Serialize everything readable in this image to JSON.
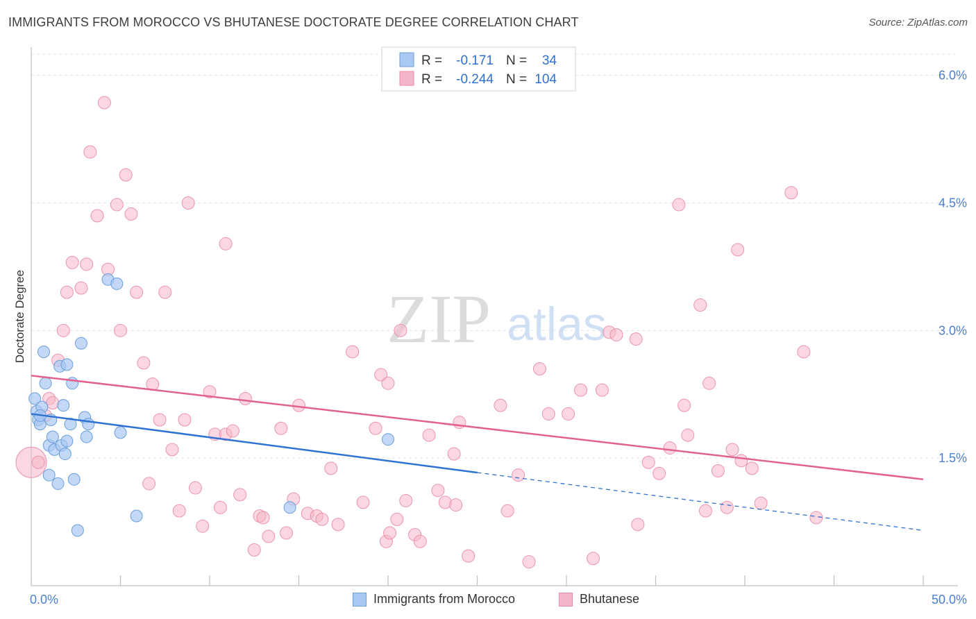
{
  "title": "IMMIGRANTS FROM MOROCCO VS BHUTANESE DOCTORATE DEGREE CORRELATION CHART",
  "source": "Source: ZipAtlas.com",
  "watermark": {
    "zip": "ZIP",
    "atlas": "atlas"
  },
  "legend_top": {
    "rows": [
      {
        "r_label": "R =",
        "r_value": "-0.171",
        "n_label": "N =",
        "n_value": "34",
        "color": "#a9c8f2"
      },
      {
        "r_label": "R =",
        "r_value": "-0.244",
        "n_label": "N =",
        "n_value": "104",
        "color": "#f5b6c9"
      }
    ]
  },
  "legend_bottom": {
    "series1": "Immigrants from Morocco",
    "series2": "Bhutanese"
  },
  "chart_data": {
    "type": "scatter",
    "xlabel": "",
    "ylabel": "Doctorate Degree",
    "xlim": [
      0,
      50
    ],
    "ylim": [
      0,
      6.25
    ],
    "x_tick_labels": [
      "0.0%",
      "50.0%"
    ],
    "y_ticks": [
      1.5,
      3.0,
      4.5,
      6.0
    ],
    "y_tick_labels": [
      "1.5%",
      "3.0%",
      "4.5%",
      "6.0%"
    ],
    "grid": true,
    "legend": "top-center",
    "colors": {
      "morocco_fill": "#a9c8f2",
      "morocco_edge": "#6a9fdc",
      "morocco_line": "#2f72d4",
      "bhutanese_fill": "#f5b6c9",
      "bhutanese_edge": "#e98aa8",
      "bhutanese_line": "#e2628f",
      "tick_label": "#4a7fd0"
    },
    "series": [
      {
        "name": "Immigrants from Morocco",
        "trend": {
          "x0": 0,
          "y0": 2.02,
          "x1": 25,
          "y1": 1.33,
          "dash_to_x": 50,
          "dash_to_y": 0.65
        },
        "points": [
          [
            0.2,
            2.2
          ],
          [
            0.3,
            2.05
          ],
          [
            0.4,
            1.95
          ],
          [
            0.5,
            1.9
          ],
          [
            0.6,
            2.1
          ],
          [
            0.7,
            2.75
          ],
          [
            0.8,
            2.38
          ],
          [
            1.0,
            1.65
          ],
          [
            1.1,
            1.95
          ],
          [
            1.2,
            1.75
          ],
          [
            1.3,
            1.6
          ],
          [
            1.5,
            1.2
          ],
          [
            1.6,
            2.58
          ],
          [
            1.7,
            1.65
          ],
          [
            1.8,
            2.12
          ],
          [
            1.9,
            1.55
          ],
          [
            2.0,
            1.7
          ],
          [
            2.2,
            1.9
          ],
          [
            2.3,
            2.38
          ],
          [
            2.4,
            1.25
          ],
          [
            2.6,
            0.65
          ],
          [
            2.8,
            2.85
          ],
          [
            3.0,
            1.98
          ],
          [
            3.1,
            1.75
          ],
          [
            3.2,
            1.9
          ],
          [
            4.3,
            3.6
          ],
          [
            4.8,
            3.55
          ],
          [
            5.0,
            1.8
          ],
          [
            5.9,
            0.82
          ],
          [
            1.0,
            1.3
          ],
          [
            14.5,
            0.92
          ],
          [
            20.0,
            1.72
          ],
          [
            2.0,
            2.6
          ],
          [
            0.5,
            2.0
          ]
        ]
      },
      {
        "name": "Bhutanese",
        "trend": {
          "x0": 0,
          "y0": 2.47,
          "x1": 50,
          "y1": 1.25
        },
        "points": [
          [
            0.0,
            1.45
          ],
          [
            0.8,
            2.0
          ],
          [
            1.0,
            2.2
          ],
          [
            1.2,
            2.15
          ],
          [
            1.5,
            2.65
          ],
          [
            1.8,
            3.0
          ],
          [
            2.0,
            3.45
          ],
          [
            2.3,
            3.8
          ],
          [
            2.8,
            3.5
          ],
          [
            3.1,
            3.78
          ],
          [
            3.3,
            5.1
          ],
          [
            3.7,
            4.35
          ],
          [
            4.1,
            5.68
          ],
          [
            4.3,
            3.72
          ],
          [
            4.8,
            4.48
          ],
          [
            5.0,
            3.0
          ],
          [
            5.3,
            4.83
          ],
          [
            5.6,
            4.37
          ],
          [
            5.9,
            3.45
          ],
          [
            6.3,
            2.62
          ],
          [
            6.6,
            1.2
          ],
          [
            6.8,
            2.37
          ],
          [
            7.2,
            1.95
          ],
          [
            7.5,
            3.45
          ],
          [
            7.9,
            1.6
          ],
          [
            8.3,
            0.88
          ],
          [
            8.6,
            1.95
          ],
          [
            8.8,
            4.5
          ],
          [
            9.2,
            1.15
          ],
          [
            9.6,
            0.7
          ],
          [
            10.0,
            2.28
          ],
          [
            10.3,
            1.78
          ],
          [
            10.6,
            0.92
          ],
          [
            10.9,
            1.78
          ],
          [
            10.9,
            4.02
          ],
          [
            11.3,
            1.82
          ],
          [
            11.7,
            1.07
          ],
          [
            12.0,
            2.2
          ],
          [
            12.5,
            0.42
          ],
          [
            12.8,
            0.82
          ],
          [
            13.0,
            0.8
          ],
          [
            13.3,
            0.58
          ],
          [
            14.0,
            1.85
          ],
          [
            14.3,
            0.62
          ],
          [
            14.7,
            1.02
          ],
          [
            15.0,
            2.12
          ],
          [
            15.5,
            0.85
          ],
          [
            16.0,
            0.82
          ],
          [
            16.3,
            0.78
          ],
          [
            16.8,
            1.38
          ],
          [
            17.2,
            0.72
          ],
          [
            18.0,
            2.75
          ],
          [
            18.6,
            0.98
          ],
          [
            19.3,
            1.85
          ],
          [
            19.6,
            2.48
          ],
          [
            19.9,
            0.52
          ],
          [
            20.0,
            2.38
          ],
          [
            20.1,
            0.62
          ],
          [
            20.5,
            0.78
          ],
          [
            20.7,
            3.0
          ],
          [
            21.0,
            1.0
          ],
          [
            21.5,
            0.6
          ],
          [
            21.8,
            0.52
          ],
          [
            22.3,
            1.77
          ],
          [
            22.8,
            1.12
          ],
          [
            23.2,
            0.98
          ],
          [
            23.7,
            1.55
          ],
          [
            23.8,
            0.95
          ],
          [
            24.0,
            1.92
          ],
          [
            24.5,
            0.35
          ],
          [
            26.3,
            2.12
          ],
          [
            26.7,
            0.88
          ],
          [
            27.3,
            1.3
          ],
          [
            27.9,
            0.28
          ],
          [
            28.5,
            2.55
          ],
          [
            29.0,
            2.02
          ],
          [
            30.1,
            2.02
          ],
          [
            30.8,
            2.3
          ],
          [
            31.5,
            0.32
          ],
          [
            32.0,
            2.3
          ],
          [
            32.4,
            2.98
          ],
          [
            32.8,
            2.95
          ],
          [
            33.9,
            2.9
          ],
          [
            34.0,
            0.72
          ],
          [
            34.6,
            1.45
          ],
          [
            35.2,
            1.32
          ],
          [
            35.8,
            1.62
          ],
          [
            36.3,
            4.48
          ],
          [
            36.6,
            2.12
          ],
          [
            36.8,
            1.77
          ],
          [
            37.5,
            3.3
          ],
          [
            37.8,
            0.88
          ],
          [
            38.0,
            2.38
          ],
          [
            38.5,
            1.35
          ],
          [
            39.0,
            0.92
          ],
          [
            39.3,
            1.6
          ],
          [
            39.6,
            3.95
          ],
          [
            39.8,
            1.47
          ],
          [
            40.4,
            1.38
          ],
          [
            40.9,
            0.97
          ],
          [
            42.6,
            4.62
          ],
          [
            43.3,
            2.75
          ],
          [
            44.0,
            0.8
          ],
          [
            0.4,
            1.45
          ]
        ]
      }
    ]
  }
}
